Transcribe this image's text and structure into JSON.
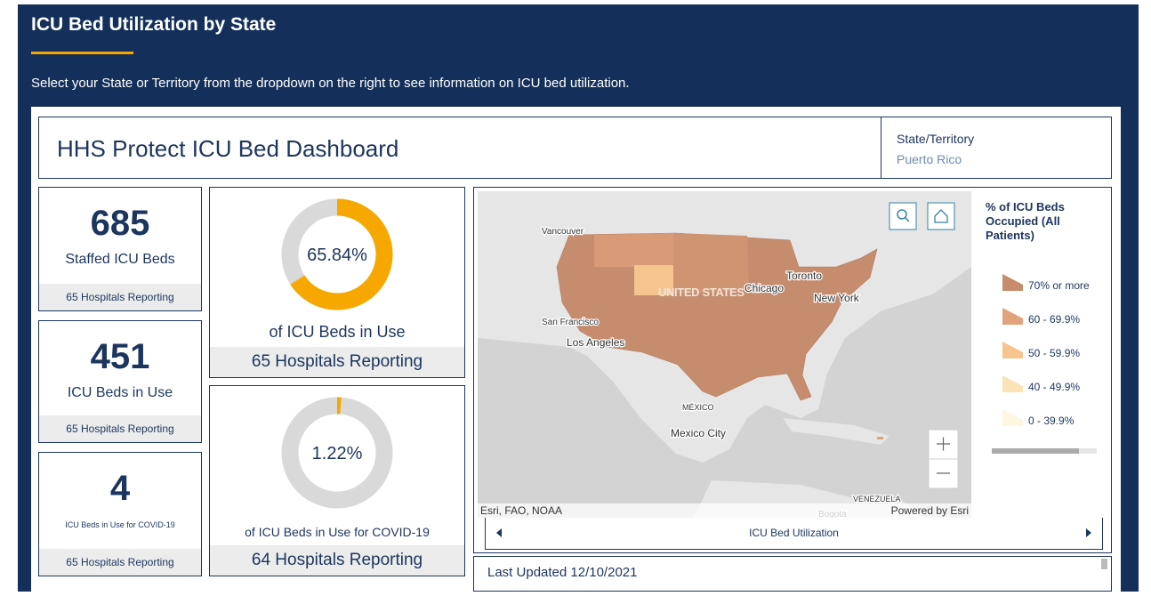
{
  "header": {
    "title": "ICU Bed Utilization by State",
    "subtitle": "Select your State or Territory from the dropdown on the right to see information on ICU bed utilization."
  },
  "dashboard": {
    "title": "HHS Protect ICU Bed Dashboard",
    "selector": {
      "label": "State/Territory",
      "value": "Puerto Rico"
    }
  },
  "indicators": [
    {
      "value": 685,
      "label": "Staffed ICU Beds",
      "footer": "65 Hospitals Reporting"
    },
    {
      "value": 451,
      "label": "ICU Beds in Use",
      "footer": "65 Hospitals Reporting"
    },
    {
      "value": 4,
      "label": "ICU Beds in Use for COVID-19",
      "footer": "65 Hospitals Reporting"
    }
  ],
  "gauges": [
    {
      "value": 65.84,
      "value_label": "65.84%",
      "label": "of ICU Beds in Use",
      "footer": "65 Hospitals Reporting",
      "color": "#f7a800"
    },
    {
      "value": 1.22,
      "value_label": "1.22%",
      "label": "of ICU Beds in Use for COVID-19",
      "footer": "64 Hospitals Reporting",
      "color": "#f7a800"
    }
  ],
  "map": {
    "places": [
      "Vancouver",
      "Toronto",
      "Chicago",
      "New York",
      "San Francisco",
      "Los Angeles",
      "UNITED STATES",
      "MÉXICO",
      "Mexico City",
      "VENEZUELA",
      "Bogota"
    ],
    "attribution": "Esri, FAO, NOAA",
    "powered": "Powered by Esri",
    "legend": {
      "title": "% of ICU Beds Occupied (All Patients)",
      "items": [
        {
          "label": "70% or more",
          "color": "#c58c6e"
        },
        {
          "label": "60 - 69.9%",
          "color": "#e1a27c"
        },
        {
          "label": "50 - 59.9%",
          "color": "#f6c48f"
        },
        {
          "label": "40 - 49.9%",
          "color": "#fbe3b8"
        },
        {
          "label": "0 - 39.9%",
          "color": "#fdf6e0"
        }
      ]
    },
    "nav": "ICU Bed Utilization"
  },
  "footer": {
    "last_updated": "Last Updated 12/10/2021"
  }
}
